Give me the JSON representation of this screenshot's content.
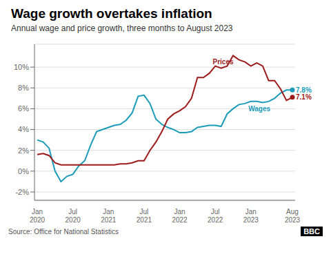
{
  "chart_data": {
    "type": "line",
    "title": "Wage growth overtakes inflation",
    "subtitle": "Annual wage and price growth, three months to August 2023",
    "source": "Source: Office for National Statistics",
    "logo": "BBC",
    "categories": [
      "Jan\n2020",
      null,
      null,
      null,
      null,
      null,
      "Jul\n2020",
      null,
      null,
      null,
      null,
      null,
      "Jan\n2021",
      null,
      null,
      null,
      null,
      null,
      "Jul\n2021",
      null,
      null,
      null,
      null,
      null,
      "Jan\n2022",
      null,
      null,
      null,
      null,
      null,
      "Jul\n2022",
      null,
      null,
      null,
      null,
      null,
      "Jan\n2023",
      null,
      null,
      null,
      null,
      null,
      null,
      "Aug\n2023"
    ],
    "series": [
      {
        "color": "#1a9bba",
        "values": [
          3.0,
          2.8,
          2.2,
          0.0,
          -1.0,
          -0.5,
          -0.3,
          0.5,
          1.0,
          2.5,
          3.8,
          4.0,
          4.2,
          4.4,
          4.5,
          4.9,
          5.6,
          7.2,
          7.3,
          6.5,
          5.0,
          4.5,
          4.2,
          4.0,
          3.7,
          3.7,
          3.8,
          4.2,
          4.3,
          4.4,
          4.4,
          4.3,
          5.5,
          6.0,
          6.4,
          6.5,
          6.7,
          6.7,
          6.6,
          6.7,
          7.0,
          7.5,
          7.8,
          7.8
        ]
      },
      {
        "color": "#9e1a1a",
        "values": [
          1.6,
          1.7,
          1.5,
          0.8,
          0.6,
          0.6,
          0.6,
          0.6,
          0.6,
          0.6,
          0.6,
          0.6,
          0.6,
          0.6,
          0.7,
          0.7,
          0.8,
          1.0,
          1.0,
          2.0,
          2.8,
          3.8,
          5.0,
          5.5,
          5.8,
          6.2,
          7.0,
          9.0,
          9.0,
          9.4,
          10.1,
          9.9,
          10.1,
          11.1,
          10.7,
          10.5,
          10.1,
          10.4,
          10.1,
          8.7,
          8.7,
          7.9,
          6.8,
          7.1
        ]
      }
    ],
    "ylim": [
      -2.8,
      12.2
    ],
    "yticks": [
      {
        "value": -2,
        "label": "-2%"
      },
      {
        "value": 0,
        "label": "0%"
      },
      {
        "value": 2,
        "label": "2%"
      },
      {
        "value": 4,
        "label": "4%"
      },
      {
        "value": 6,
        "label": "6%"
      },
      {
        "value": 8,
        "label": "8%"
      },
      {
        "value": 10,
        "label": "10%"
      }
    ],
    "grid": true,
    "annotations": [
      {
        "text": "Prices",
        "x": 29,
        "y": 10.5,
        "color": "#9e1a1a"
      },
      {
        "text": "Wages",
        "x": 35,
        "y": 6.0,
        "color": "#1a9bba"
      },
      {
        "text": "7.8%",
        "x": 43,
        "y": 7.8,
        "color": "#1a9bba"
      },
      {
        "text": "7.1%",
        "x": 43,
        "y": 7.1,
        "color": "#9e1a1a"
      }
    ]
  }
}
